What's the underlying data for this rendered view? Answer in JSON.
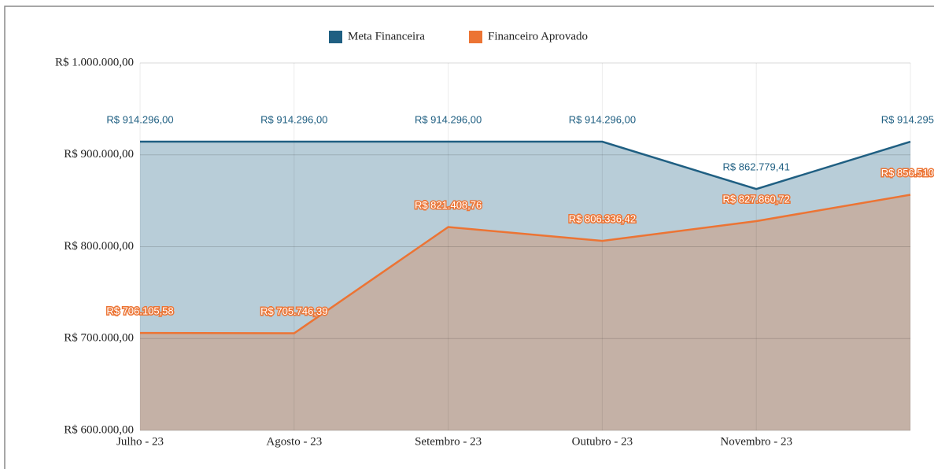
{
  "chart_data": {
    "type": "area",
    "categories": [
      "Julho - 23",
      "Agosto - 23",
      "Setembro - 23",
      "Outubro - 23",
      "Novembro - 23",
      null
    ],
    "series": [
      {
        "name": "Meta Financeira",
        "color": "#1f5f82",
        "fill": "#b8cdd8",
        "values": [
          914296,
          914296,
          914296,
          914296,
          862779.41,
          914295
        ],
        "value_labels": [
          "R$ 914.296,00",
          "R$ 914.296,00",
          "R$ 914.296,00",
          "R$ 914.296,00",
          "R$ 862.779,41",
          "R$ 914.295"
        ]
      },
      {
        "name": "Financeiro Aprovado",
        "color": "#ec7434",
        "fill": "#c4b1a6",
        "values": [
          706105.58,
          705746.39,
          821408.76,
          806336.42,
          827860.72,
          856510
        ],
        "value_labels": [
          "R$ 706.105,58",
          "R$ 705.746,39",
          "R$ 821.408,76",
          "R$ 806.336,42",
          "R$ 827.860,72",
          "R$ 856.510"
        ]
      }
    ],
    "ylim": [
      600000,
      1000000
    ],
    "yticks": [
      {
        "value": 600000,
        "label": "R$ 600.000,00"
      },
      {
        "value": 700000,
        "label": "R$ 700.000,00"
      },
      {
        "value": 800000,
        "label": "R$ 800.000,00"
      },
      {
        "value": 900000,
        "label": "R$ 900.000,00"
      },
      {
        "value": 1000000,
        "label": "R$ 1.000.000,00"
      }
    ],
    "grid": true,
    "legend": "top"
  }
}
